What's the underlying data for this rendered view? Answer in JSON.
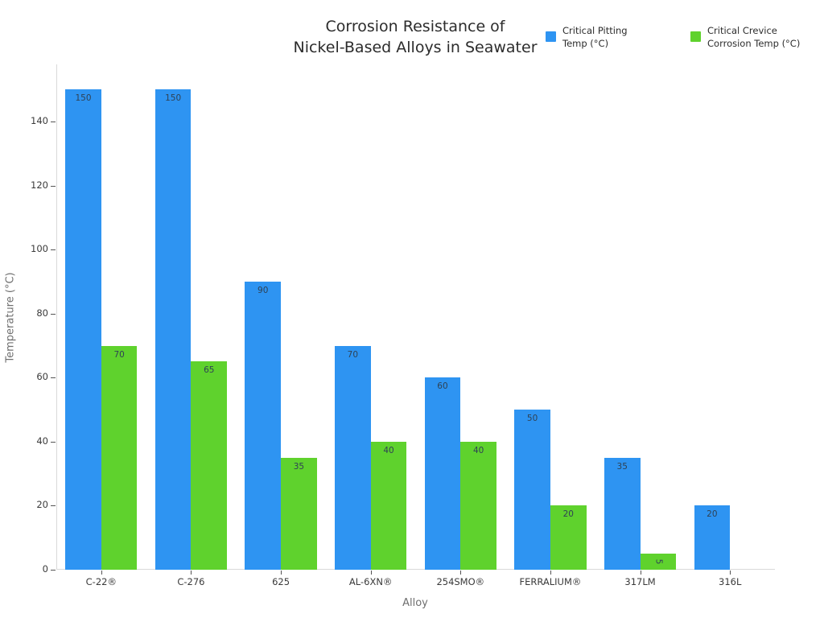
{
  "chart_data": {
    "type": "bar",
    "title": "Corrosion Resistance of Nickel-Based Alloys in Seawater",
    "title_lines": [
      "Corrosion Resistance of",
      "Nickel-Based Alloys in Seawater"
    ],
    "xlabel": "Alloy",
    "ylabel": "Temperature (°C)",
    "categories": [
      "C-22®",
      "C-276",
      "625",
      "AL-6XN®",
      "254SMO®",
      "FERRALIUM®",
      "317LM",
      "316L"
    ],
    "series": [
      {
        "name": "Critical Pitting Temp (°C)",
        "legend_lines": [
          "Critical Pitting",
          "Temp (°C)"
        ],
        "color": "#2e94f2",
        "values": [
          150,
          150,
          90,
          70,
          60,
          50,
          35,
          20
        ]
      },
      {
        "name": "Critical Crevice Corrosion Temp (°C)",
        "legend_lines": [
          "Critical Crevice",
          "Corrosion Temp (°C)"
        ],
        "color": "#5fd22d",
        "values": [
          70,
          65,
          35,
          40,
          40,
          20,
          5,
          0
        ]
      }
    ],
    "ylim": [
      0,
      157.9
    ],
    "yticks": [
      0,
      20,
      40,
      60,
      80,
      100,
      120,
      140
    ],
    "grid": false,
    "legend_position": "top-right",
    "bar_labels_shown": true
  }
}
